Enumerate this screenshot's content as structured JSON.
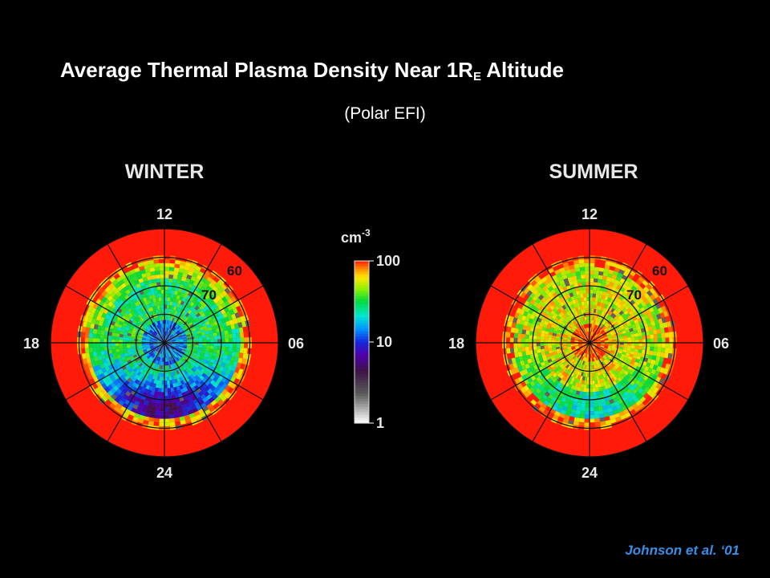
{
  "header": {
    "title_prefix": "Average Thermal Plasma Density Near 1R",
    "title_sub": "E",
    "title_suffix": " Altitude",
    "subtitle": "(Polar EFI)"
  },
  "credit": "Johnson et al. ‘01",
  "chart_data": [
    {
      "type": "heatmap",
      "title": "WINTER",
      "projection": "polar (MLT vs invariant latitude)",
      "mlt_labels": [
        "12",
        "06",
        "24",
        "18"
      ],
      "latitude_labels": [
        "60",
        "70"
      ],
      "grid": true,
      "background_color": "#ff1a0a",
      "pattern": "Red (≥100 cm^-3) outside ~55°; green 20–60 cm^-3 ring; blue–purple 3–15 cm^-3 depletion concentrated on the nightside (MLT 18–24–06)"
    },
    {
      "type": "heatmap",
      "title": "SUMMER",
      "projection": "polar (MLT vs invariant latitude)",
      "mlt_labels": [
        "12",
        "06",
        "24",
        "18"
      ],
      "latitude_labels": [
        "60",
        "70"
      ],
      "grid": true,
      "background_color": "#ff1a0a",
      "pattern": "Red (≥100 cm^-3) outside ~55°; mostly green–yellow 20–80 cm^-3 across polar cap with orange core near 80°; sparse cyan/blue near midnight"
    }
  ],
  "colorbar": {
    "unit_base": "cm",
    "unit_exp": "-3",
    "scale": "log",
    "range": [
      1,
      100
    ],
    "tick_labels": [
      "100",
      "10",
      "1"
    ]
  }
}
